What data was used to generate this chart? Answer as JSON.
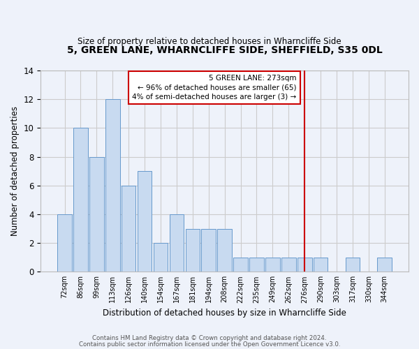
{
  "title": "5, GREEN LANE, WHARNCLIFFE SIDE, SHEFFIELD, S35 0DL",
  "subtitle": "Size of property relative to detached houses in Wharncliffe Side",
  "xlabel": "Distribution of detached houses by size in Wharncliffe Side",
  "ylabel": "Number of detached properties",
  "bins": [
    "72sqm",
    "86sqm",
    "99sqm",
    "113sqm",
    "126sqm",
    "140sqm",
    "154sqm",
    "167sqm",
    "181sqm",
    "194sqm",
    "208sqm",
    "222sqm",
    "235sqm",
    "249sqm",
    "262sqm",
    "276sqm",
    "290sqm",
    "303sqm",
    "317sqm",
    "330sqm",
    "344sqm"
  ],
  "values": [
    4,
    10,
    8,
    12,
    6,
    7,
    2,
    4,
    3,
    3,
    3,
    1,
    1,
    1,
    1,
    1,
    1,
    0,
    1,
    0,
    1
  ],
  "bar_color": "#c8daf0",
  "bar_edge_color": "#6699cc",
  "vline_index": 15,
  "annotation_text": "5 GREEN LANE: 273sqm\n← 96% of detached houses are smaller (65)\n4% of semi-detached houses are larger (3) →",
  "annotation_box_color": "#ffffff",
  "annotation_box_edge_color": "#cc0000",
  "vline_color": "#cc0000",
  "ylim": [
    0,
    14
  ],
  "yticks": [
    0,
    2,
    4,
    6,
    8,
    10,
    12,
    14
  ],
  "grid_color": "#cccccc",
  "background_color": "#eef2fa",
  "footer_line1": "Contains HM Land Registry data © Crown copyright and database right 2024.",
  "footer_line2": "Contains public sector information licensed under the Open Government Licence v3.0."
}
